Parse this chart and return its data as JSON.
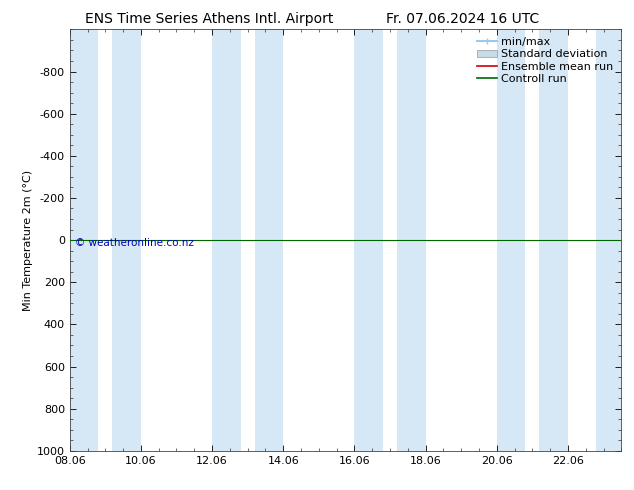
{
  "title_left": "ENS Time Series Athens Intl. Airport",
  "title_right": "Fr. 07.06.2024 16 UTC",
  "ylabel": "Min Temperature 2m (°C)",
  "ylim_top": -1000,
  "ylim_bottom": 1000,
  "yticks": [
    -800,
    -600,
    -400,
    -200,
    0,
    200,
    400,
    600,
    800,
    1000
  ],
  "xtick_labels": [
    "08.06",
    "10.06",
    "12.06",
    "14.06",
    "16.06",
    "18.06",
    "20.06",
    "22.06"
  ],
  "xtick_positions": [
    0,
    2,
    4,
    6,
    8,
    10,
    12,
    14
  ],
  "xlim_start": 0,
  "xlim_end": 15.5,
  "shaded_bands": [
    [
      0.0,
      0.8
    ],
    [
      1.2,
      2.0
    ],
    [
      4.0,
      4.8
    ],
    [
      5.2,
      6.0
    ],
    [
      8.0,
      8.8
    ],
    [
      9.2,
      10.0
    ],
    [
      12.0,
      12.8
    ],
    [
      13.2,
      14.0
    ],
    [
      14.8,
      15.5
    ]
  ],
  "band_color": "#d6e8f5",
  "control_run_color": "#006600",
  "ensemble_mean_color": "#cc0000",
  "minmax_color": "#a0c8e8",
  "stddev_color": "#c8dce8",
  "bg_color": "#ffffff",
  "plot_bg_color": "#ffffff",
  "copyright_text": "© weatheronline.co.nz",
  "copyright_color": "#0000bb",
  "title_fontsize": 10,
  "tick_fontsize": 8,
  "ylabel_fontsize": 8,
  "legend_fontsize": 8
}
